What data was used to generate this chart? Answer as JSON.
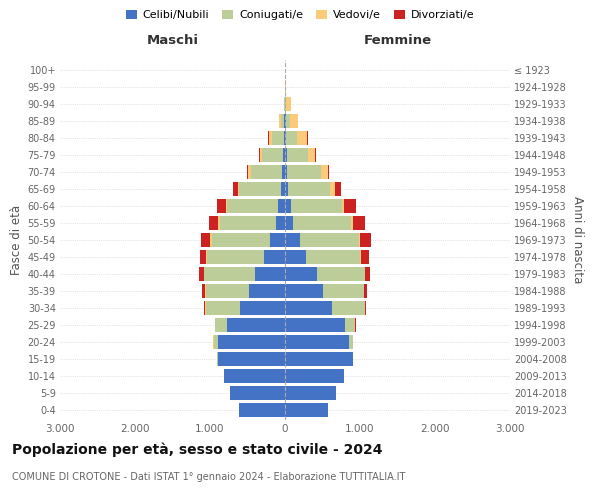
{
  "age_groups": [
    "0-4",
    "5-9",
    "10-14",
    "15-19",
    "20-24",
    "25-29",
    "30-34",
    "35-39",
    "40-44",
    "45-49",
    "50-54",
    "55-59",
    "60-64",
    "65-69",
    "70-74",
    "75-79",
    "80-84",
    "85-89",
    "90-94",
    "95-99",
    "100+"
  ],
  "birth_years": [
    "2019-2023",
    "2014-2018",
    "2009-2013",
    "2004-2008",
    "1999-2003",
    "1994-1998",
    "1989-1993",
    "1984-1988",
    "1979-1983",
    "1974-1978",
    "1969-1973",
    "1964-1968",
    "1959-1963",
    "1954-1958",
    "1949-1953",
    "1944-1948",
    "1939-1943",
    "1934-1938",
    "1929-1933",
    "1924-1928",
    "≤ 1923"
  ],
  "colors": {
    "celibi": "#4472C4",
    "coniugati": "#BDCD9A",
    "vedovi": "#F9CB7A",
    "divorziati": "#CC2222"
  },
  "males": {
    "celibi": [
      620,
      730,
      820,
      900,
      900,
      780,
      600,
      480,
      400,
      280,
      200,
      120,
      90,
      50,
      40,
      30,
      20,
      10,
      5,
      2,
      2
    ],
    "coniugati": [
      0,
      0,
      0,
      10,
      50,
      150,
      460,
      580,
      680,
      760,
      780,
      750,
      680,
      560,
      420,
      280,
      150,
      50,
      10,
      0,
      0
    ],
    "vedovi": [
      0,
      0,
      0,
      0,
      10,
      0,
      5,
      5,
      5,
      10,
      15,
      20,
      20,
      20,
      30,
      30,
      50,
      20,
      5,
      0,
      0
    ],
    "divorziati": [
      0,
      0,
      0,
      0,
      0,
      10,
      20,
      40,
      60,
      80,
      120,
      130,
      120,
      70,
      20,
      10,
      5,
      0,
      0,
      0,
      0
    ]
  },
  "females": {
    "celibi": [
      570,
      680,
      780,
      900,
      850,
      800,
      630,
      510,
      420,
      280,
      200,
      110,
      80,
      40,
      30,
      20,
      15,
      10,
      5,
      3,
      2
    ],
    "coniugati": [
      0,
      0,
      0,
      5,
      50,
      130,
      430,
      540,
      640,
      720,
      780,
      770,
      680,
      560,
      450,
      280,
      150,
      60,
      10,
      0,
      0
    ],
    "vedovi": [
      0,
      0,
      0,
      0,
      0,
      0,
      5,
      5,
      5,
      10,
      15,
      20,
      30,
      60,
      90,
      100,
      130,
      100,
      60,
      5,
      0
    ],
    "divorziati": [
      0,
      0,
      0,
      0,
      0,
      10,
      20,
      40,
      70,
      110,
      150,
      160,
      150,
      80,
      20,
      10,
      5,
      0,
      0,
      0,
      0
    ]
  },
  "xlim": 3000,
  "title": "Popolazione per età, sesso e stato civile - 2024",
  "subtitle": "COMUNE DI CROTONE - Dati ISTAT 1° gennaio 2024 - Elaborazione TUTTITALIA.IT",
  "xlabel_left": "Maschi",
  "xlabel_right": "Femmine",
  "ylabel_left": "Fasce di età",
  "ylabel_right": "Anni di nascita"
}
